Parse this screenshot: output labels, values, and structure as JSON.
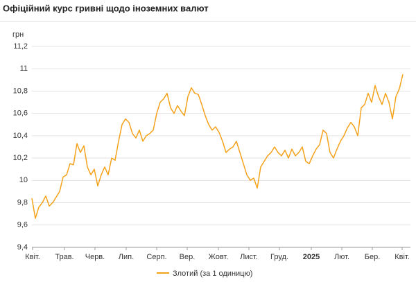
{
  "chart_data": {
    "type": "line",
    "title": "Офіційний курс гривні щодо іноземних валют",
    "y_label": "грн",
    "series": [
      {
        "name": "Злотий (за 1 одиницю)",
        "color": "#f5a21b",
        "values": [
          9.84,
          9.66,
          9.76,
          9.8,
          9.86,
          9.77,
          9.8,
          9.85,
          9.9,
          10.03,
          10.05,
          10.15,
          10.14,
          10.33,
          10.25,
          10.31,
          10.12,
          10.05,
          10.1,
          9.95,
          10.05,
          10.12,
          10.05,
          10.2,
          10.18,
          10.35,
          10.5,
          10.55,
          10.52,
          10.42,
          10.38,
          10.45,
          10.35,
          10.4,
          10.42,
          10.45,
          10.6,
          10.7,
          10.73,
          10.78,
          10.65,
          10.6,
          10.67,
          10.62,
          10.58,
          10.75,
          10.83,
          10.78,
          10.77,
          10.68,
          10.58,
          10.5,
          10.45,
          10.48,
          10.43,
          10.35,
          10.25,
          10.28,
          10.3,
          10.35,
          10.25,
          10.15,
          10.05,
          10.0,
          10.02,
          9.93,
          10.12,
          10.17,
          10.22,
          10.25,
          10.3,
          10.25,
          10.22,
          10.27,
          10.2,
          10.28,
          10.22,
          10.25,
          10.3,
          10.17,
          10.15,
          10.22,
          10.28,
          10.32,
          10.45,
          10.42,
          10.25,
          10.2,
          10.28,
          10.35,
          10.4,
          10.47,
          10.52,
          10.48,
          10.4,
          10.65,
          10.68,
          10.78,
          10.7,
          10.85,
          10.75,
          10.68,
          10.78,
          10.7,
          10.55,
          10.75,
          10.82,
          10.95
        ]
      }
    ],
    "xlim": [
      0,
      107
    ],
    "xticks": [
      {
        "value": 0.2,
        "label": "Квіт."
      },
      {
        "value": 9.4,
        "label": "Трав."
      },
      {
        "value": 18.2,
        "label": "Черв."
      },
      {
        "value": 27.2,
        "label": "Лип."
      },
      {
        "value": 36,
        "label": "Серп."
      },
      {
        "value": 44.8,
        "label": "Вер."
      },
      {
        "value": 53.8,
        "label": "Жовт."
      },
      {
        "value": 62.6,
        "label": "Лист."
      },
      {
        "value": 71.4,
        "label": "Груд."
      },
      {
        "value": 80.6,
        "label": "2025"
      },
      {
        "value": 89.4,
        "label": "Лют."
      },
      {
        "value": 98.2,
        "label": "Бер."
      },
      {
        "value": 106.8,
        "label": "Квіт."
      }
    ],
    "ylim": [
      9.4,
      11.2
    ],
    "yticks": [
      {
        "value": 9.4,
        "label": "9,4"
      },
      {
        "value": 9.6,
        "label": "9,6"
      },
      {
        "value": 9.8,
        "label": "9,8"
      },
      10,
      {
        "value": 10.2,
        "label": "10,2"
      },
      {
        "value": 10.4,
        "label": "10,4"
      },
      {
        "value": 10.6,
        "label": "10,6"
      },
      {
        "value": 10.8,
        "label": "10,8"
      },
      11,
      {
        "value": 11.2,
        "label": "11,2"
      }
    ],
    "grid": true
  }
}
